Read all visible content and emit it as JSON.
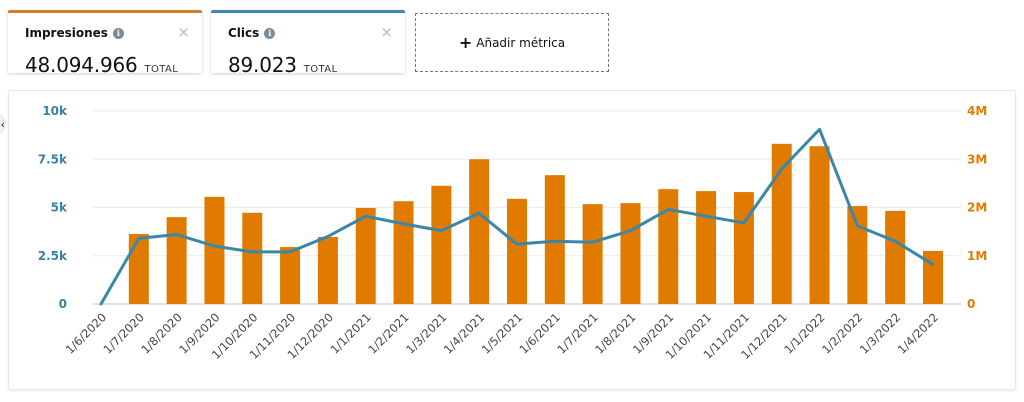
{
  "metrics": [
    {
      "title": "Impresiones",
      "value": "48.094.966",
      "unit": "TOTAL",
      "color": "#d17f29",
      "close_icon": "×"
    },
    {
      "title": "Clics",
      "value": "89.023",
      "unit": "TOTAL",
      "color": "#3c8ab0",
      "close_icon": "×"
    }
  ],
  "add_metric": {
    "icon": "+",
    "label": "Añadir métrica"
  },
  "collapse_icon": "‹",
  "chart_data": {
    "type": "bar+line",
    "title": "",
    "categories": [
      "1/6/2020",
      "1/7/2020",
      "1/8/2020",
      "1/9/2020",
      "1/10/2020",
      "1/11/2020",
      "1/12/2020",
      "1/1/2021",
      "1/2/2021",
      "1/3/2021",
      "1/4/2021",
      "1/5/2021",
      "1/6/2021",
      "1/7/2021",
      "1/8/2021",
      "1/9/2021",
      "1/10/2021",
      "1/11/2021",
      "1/12/2021",
      "1/1/2022",
      "1/2/2022",
      "1/3/2022",
      "1/4/2022"
    ],
    "series": [
      {
        "name": "Impresiones",
        "type": "bar",
        "axis": "right",
        "color": "#e07b00",
        "values": [
          0,
          1450000,
          1800000,
          2220000,
          1890000,
          1180000,
          1390000,
          1990000,
          2130000,
          2450000,
          3000000,
          2180000,
          2670000,
          2070000,
          2090000,
          2380000,
          2340000,
          2320000,
          3320000,
          3270000,
          2030000,
          1930000,
          1100000
        ]
      },
      {
        "name": "Clics",
        "type": "line",
        "axis": "left",
        "color": "#3a87a8",
        "values": [
          0,
          3400,
          3600,
          3000,
          2700,
          2700,
          3500,
          4550,
          4150,
          3800,
          4700,
          3100,
          3250,
          3200,
          3800,
          4900,
          4550,
          4200,
          7000,
          9050,
          4050,
          3250,
          2050
        ]
      }
    ],
    "y_left": {
      "label": "",
      "ticks": [
        "0",
        "2.5k",
        "5k",
        "7.5k",
        "10k"
      ],
      "range": [
        0,
        10000
      ],
      "color": "#3a7fa6"
    },
    "y_right": {
      "label": "",
      "ticks": [
        "0",
        "1M",
        "2M",
        "3M",
        "4M"
      ],
      "range": [
        0,
        4000000
      ],
      "color": "#e07b00"
    },
    "xlabel": "",
    "grid": true,
    "legend": "none"
  }
}
